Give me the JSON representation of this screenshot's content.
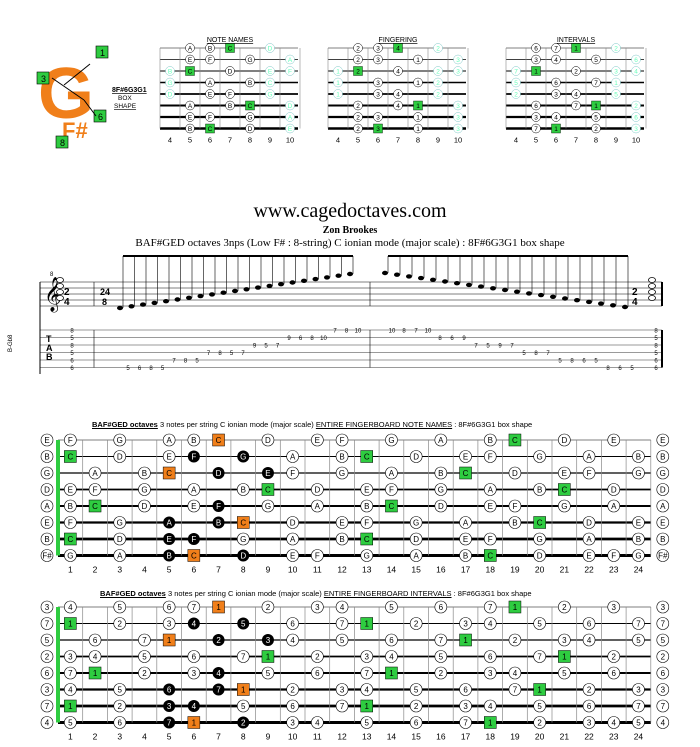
{
  "logo": {
    "letter": "G",
    "sub": "F#",
    "caption_code": "8F#6G3G1",
    "caption_l1": "BOX",
    "caption_l2": "SHAPE",
    "badges": [
      "1",
      "3",
      "6",
      "8"
    ]
  },
  "top_diagrams": {
    "note_names_title": "NOTE NAMES",
    "fingering_title": "FINGERING",
    "intervals_title": "INTERVALS",
    "fret_numbers": [
      "4",
      "5",
      "6",
      "7",
      "8",
      "9",
      "10"
    ]
  },
  "website": "www.cagedoctaves.com",
  "author": "Zon Brookes",
  "subtitle": "BAF#GED octaves 3nps (Low F# : 8-string) C ionian mode (major scale) : 8F#6G3G1 box shape",
  "score": {
    "time_sig_top": "2",
    "time_sig_bottom": "4",
    "mid_time_top": "24",
    "mid_time_bottom": "8",
    "clef_note": "8",
    "tab_label": "T\nA\nB",
    "tuning_label": "B-Gb8",
    "tab_asc": [
      "5",
      "6",
      "8",
      "5",
      "7",
      "8",
      "5",
      "7",
      "8",
      "5",
      "7",
      "9",
      "5",
      "7",
      "9",
      "6",
      "8",
      "10",
      "7",
      "8",
      "10"
    ],
    "tab_desc": [
      "10",
      "8",
      "7",
      "10",
      "8",
      "6",
      "9",
      "7",
      "5",
      "9",
      "7",
      "5",
      "8",
      "7",
      "5",
      "8",
      "6",
      "5",
      "8",
      "6",
      "5"
    ]
  },
  "fb_notes": {
    "title_bold": "BAF#GED octaves",
    "title_rest": " 3 notes per string C ionian mode (major scale) ",
    "title_under": "ENTIRE FINGERBOARD NOTE NAMES",
    "title_shape": " : 8F#6G3G1 box shape",
    "open_notes": [
      "E",
      "B",
      "G",
      "D",
      "A",
      "E",
      "B",
      "F#"
    ],
    "rows": [
      [
        "F",
        "",
        "G",
        "",
        "A",
        "B",
        "C",
        "",
        "D",
        "",
        "E",
        "F",
        "",
        "G",
        "",
        "A",
        "",
        "B",
        "C",
        "",
        "D",
        "",
        "E"
      ],
      [
        "C",
        "",
        "D",
        "",
        "E",
        "F",
        "",
        "G",
        "",
        "A",
        "",
        "B",
        "C",
        "",
        "D",
        "",
        "E",
        "F",
        "",
        "G",
        "",
        "A",
        "",
        "B"
      ],
      [
        "",
        "A",
        "",
        "B",
        "C",
        "",
        "D",
        "",
        "E",
        "F",
        "",
        "G",
        "",
        "A",
        "",
        "B",
        "C",
        "",
        "D",
        "",
        "E",
        "F",
        "",
        "G"
      ],
      [
        "E",
        "F",
        "",
        "G",
        "",
        "A",
        "",
        "B",
        "C",
        "",
        "D",
        "",
        "E",
        "F",
        "",
        "G",
        "",
        "A",
        "",
        "B",
        "C",
        "",
        "D",
        ""
      ],
      [
        "B",
        "C",
        "",
        "D",
        "",
        "E",
        "F",
        "",
        "G",
        "",
        "A",
        "",
        "B",
        "C",
        "",
        "D",
        "",
        "E",
        "F",
        "",
        "G",
        "",
        "A",
        ""
      ],
      [
        "F",
        "",
        "G",
        "",
        "A",
        "",
        "B",
        "C",
        "",
        "D",
        "",
        "E",
        "F",
        "",
        "G",
        "",
        "A",
        "",
        "B",
        "C",
        "",
        "D",
        "",
        "E"
      ],
      [
        "C",
        "",
        "D",
        "",
        "E",
        "F",
        "",
        "G",
        "",
        "A",
        "",
        "B",
        "C",
        "",
        "D",
        "",
        "E",
        "F",
        "",
        "G",
        "",
        "A",
        "",
        "B"
      ],
      [
        "G",
        "",
        "A",
        "",
        "B",
        "C",
        "",
        "D",
        "",
        "E",
        "F",
        "",
        "G",
        "",
        "A",
        "",
        "B",
        "C",
        "",
        "D",
        "",
        "E",
        "F",
        "G"
      ]
    ],
    "fret_numbers": [
      "1",
      "2",
      "3",
      "4",
      "5",
      "6",
      "7",
      "8",
      "9",
      "10",
      "11",
      "12",
      "13",
      "14",
      "15",
      "16",
      "17",
      "18",
      "19",
      "20",
      "21",
      "22",
      "23",
      "24"
    ]
  },
  "fb_intervals": {
    "title_bold": "BAF#GED octaves",
    "title_rest": " 3 notes per string C ionian mode (major scale) ",
    "title_under": "ENTIRE FINGERBOARD INTERVALS",
    "title_shape": " : 8F#6G3G1 box shape",
    "open_notes": [
      "3",
      "7",
      "5",
      "2",
      "6",
      "3",
      "7",
      "4"
    ],
    "rows": [
      [
        "4",
        "",
        "5",
        "",
        "6",
        "7",
        "1",
        "",
        "2",
        "",
        "3",
        "4",
        "",
        "5",
        "",
        "6",
        "",
        "7",
        "1",
        "",
        "2",
        "",
        "3"
      ],
      [
        "1",
        "",
        "2",
        "",
        "3",
        "4",
        "",
        "5",
        "",
        "6",
        "",
        "7",
        "1",
        "",
        "2",
        "",
        "3",
        "4",
        "",
        "5",
        "",
        "6",
        "",
        "7"
      ],
      [
        "",
        "6",
        "",
        "7",
        "1",
        "",
        "2",
        "",
        "3",
        "4",
        "",
        "5",
        "",
        "6",
        "",
        "7",
        "1",
        "",
        "2",
        "",
        "3",
        "4",
        "",
        "5"
      ],
      [
        "3",
        "4",
        "",
        "5",
        "",
        "6",
        "",
        "7",
        "1",
        "",
        "2",
        "",
        "3",
        "4",
        "",
        "5",
        "",
        "6",
        "",
        "7",
        "1",
        "",
        "2",
        ""
      ],
      [
        "7",
        "1",
        "",
        "2",
        "",
        "3",
        "4",
        "",
        "5",
        "",
        "6",
        "",
        "7",
        "1",
        "",
        "2",
        "",
        "3",
        "4",
        "",
        "5",
        "",
        "6",
        ""
      ],
      [
        "4",
        "",
        "5",
        "",
        "6",
        "",
        "7",
        "1",
        "",
        "2",
        "",
        "3",
        "4",
        "",
        "5",
        "",
        "6",
        "",
        "7",
        "1",
        "",
        "2",
        "",
        "3"
      ],
      [
        "1",
        "",
        "2",
        "",
        "3",
        "4",
        "",
        "5",
        "",
        "6",
        "",
        "7",
        "1",
        "",
        "2",
        "",
        "3",
        "4",
        "",
        "5",
        "",
        "6",
        "",
        "7"
      ],
      [
        "5",
        "",
        "6",
        "",
        "7",
        "1",
        "",
        "2",
        "",
        "3",
        "4",
        "",
        "5",
        "",
        "6",
        "",
        "7",
        "1",
        "",
        "2",
        "",
        "3",
        "4",
        "5"
      ]
    ],
    "fret_numbers": [
      "1",
      "2",
      "3",
      "4",
      "5",
      "6",
      "7",
      "8",
      "9",
      "10",
      "11",
      "12",
      "13",
      "14",
      "15",
      "16",
      "17",
      "18",
      "19",
      "20",
      "21",
      "22",
      "23",
      "24"
    ]
  },
  "colors": {
    "root": "#2ecc40",
    "orange": "#f07f1a",
    "black": "#000000",
    "border": "#7fc8c8"
  }
}
